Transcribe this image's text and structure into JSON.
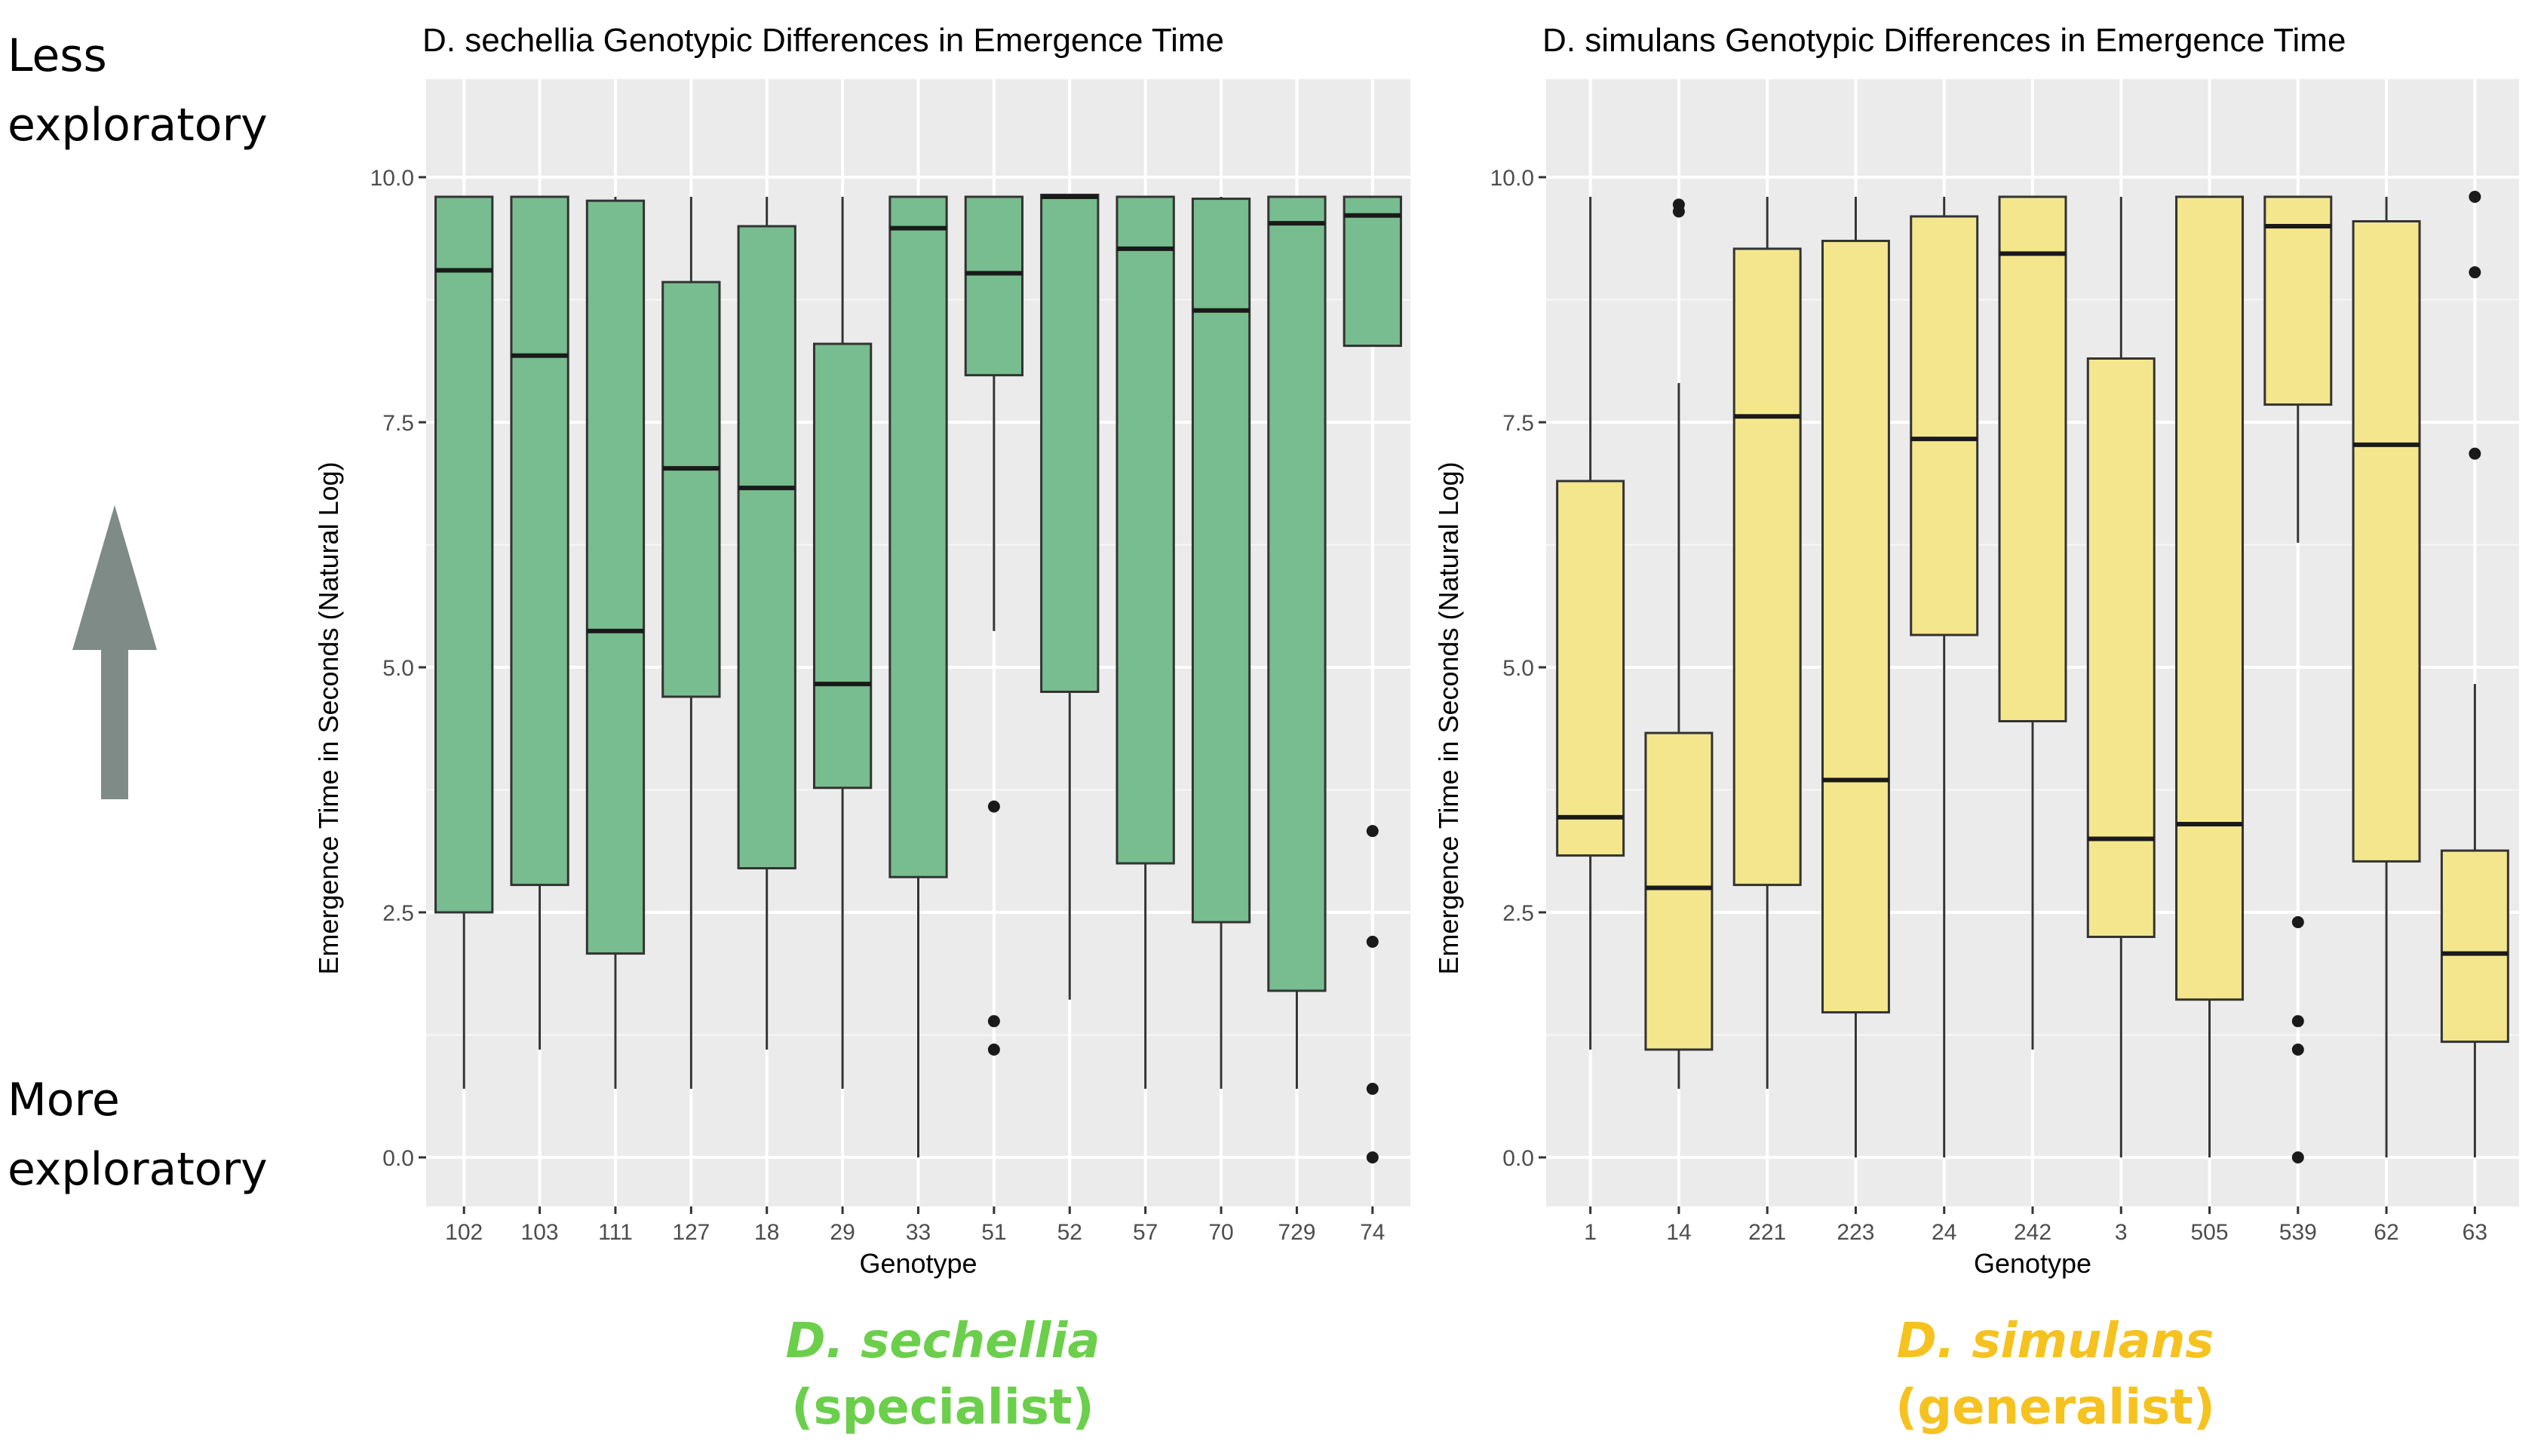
{
  "annotations": {
    "less_line1": "Less",
    "less_line2": "exploratory",
    "more_line1": "More",
    "more_line2": "exploratory",
    "arrow_icon": "up-arrow-icon",
    "arrow_color": "#7f8b86"
  },
  "species_labels": [
    {
      "name": "D. sechellia",
      "role": "(specialist)",
      "color": "#6bcf4b"
    },
    {
      "name": "D. simulans",
      "role": "(generalist)",
      "color": "#f5c21f"
    }
  ],
  "chart_data": [
    {
      "type": "boxplot",
      "title": "D. sechellia Genotypic Differences in Emergence Time",
      "xlabel": "Genotype",
      "ylabel": "Emergence Time in Seconds (Natural Log)",
      "ylim": [
        -0.5,
        11.0
      ],
      "yticks": [
        0.0,
        2.5,
        5.0,
        7.5,
        10.0
      ],
      "ytick_labels": [
        "0.0",
        "2.5",
        "5.0",
        "7.5",
        "10.0"
      ],
      "fill_color": "#77bd8f",
      "categories": [
        "102",
        "103",
        "111",
        "127",
        "18",
        "29",
        "33",
        "51",
        "52",
        "57",
        "70",
        "729",
        "74"
      ],
      "boxes": [
        {
          "genotype": "102",
          "min": 0.7,
          "q1": 2.5,
          "median": 9.05,
          "q3": 9.8,
          "max": 9.8,
          "outliers": []
        },
        {
          "genotype": "103",
          "min": 1.1,
          "q1": 2.78,
          "median": 8.18,
          "q3": 9.8,
          "max": 9.8,
          "outliers": []
        },
        {
          "genotype": "111",
          "min": 0.7,
          "q1": 2.08,
          "median": 5.37,
          "q3": 9.76,
          "max": 9.8,
          "outliers": []
        },
        {
          "genotype": "127",
          "min": 0.7,
          "q1": 4.7,
          "median": 7.03,
          "q3": 8.93,
          "max": 9.8,
          "outliers": []
        },
        {
          "genotype": "18",
          "min": 1.1,
          "q1": 2.95,
          "median": 6.83,
          "q3": 9.5,
          "max": 9.8,
          "outliers": []
        },
        {
          "genotype": "29",
          "min": 0.7,
          "q1": 3.77,
          "median": 4.83,
          "q3": 8.3,
          "max": 9.8,
          "outliers": []
        },
        {
          "genotype": "33",
          "min": 0.0,
          "q1": 2.86,
          "median": 9.48,
          "q3": 9.8,
          "max": 9.8,
          "outliers": []
        },
        {
          "genotype": "51",
          "min": 5.37,
          "q1": 7.98,
          "median": 9.02,
          "q3": 9.8,
          "max": 9.8,
          "outliers": [
            3.58,
            1.39,
            1.1
          ]
        },
        {
          "genotype": "52",
          "min": 1.61,
          "q1": 4.75,
          "median": 9.8,
          "q3": 9.82,
          "max": 9.82,
          "outliers": []
        },
        {
          "genotype": "57",
          "min": 0.7,
          "q1": 3.0,
          "median": 9.27,
          "q3": 9.8,
          "max": 9.8,
          "outliers": []
        },
        {
          "genotype": "70",
          "min": 0.7,
          "q1": 2.4,
          "median": 8.64,
          "q3": 9.78,
          "max": 9.8,
          "outliers": []
        },
        {
          "genotype": "729",
          "min": 0.7,
          "q1": 1.7,
          "median": 9.53,
          "q3": 9.8,
          "max": 9.8,
          "outliers": []
        },
        {
          "genotype": "74",
          "min": 8.28,
          "q1": 8.28,
          "median": 9.61,
          "q3": 9.8,
          "max": 9.8,
          "outliers": [
            3.33,
            2.2,
            0.7,
            0.0
          ]
        }
      ]
    },
    {
      "type": "boxplot",
      "title": "D. simulans Genotypic Differences in Emergence Time",
      "xlabel": "Genotype",
      "ylabel": "Emergence Time in Seconds (Natural Log)",
      "ylim": [
        -0.5,
        11.0
      ],
      "yticks": [
        0.0,
        2.5,
        5.0,
        7.5,
        10.0
      ],
      "ytick_labels": [
        "0.0",
        "2.5",
        "5.0",
        "7.5",
        "10.0"
      ],
      "fill_color": "#f4e68c",
      "categories": [
        "1",
        "14",
        "221",
        "223",
        "24",
        "242",
        "3",
        "505",
        "539",
        "62",
        "63"
      ],
      "boxes": [
        {
          "genotype": "1",
          "min": 1.1,
          "q1": 3.08,
          "median": 3.47,
          "q3": 6.9,
          "max": 9.8,
          "outliers": []
        },
        {
          "genotype": "14",
          "min": 0.7,
          "q1": 1.1,
          "median": 2.75,
          "q3": 4.33,
          "max": 7.9,
          "outliers": [
            9.72,
            9.65
          ]
        },
        {
          "genotype": "221",
          "min": 0.7,
          "q1": 2.78,
          "median": 7.56,
          "q3": 9.27,
          "max": 9.8,
          "outliers": []
        },
        {
          "genotype": "223",
          "min": 0.0,
          "q1": 1.48,
          "median": 3.85,
          "q3": 9.35,
          "max": 9.8,
          "outliers": []
        },
        {
          "genotype": "24",
          "min": 0.0,
          "q1": 5.33,
          "median": 7.33,
          "q3": 9.6,
          "max": 9.8,
          "outliers": []
        },
        {
          "genotype": "242",
          "min": 1.1,
          "q1": 4.45,
          "median": 9.22,
          "q3": 9.8,
          "max": 9.8,
          "outliers": []
        },
        {
          "genotype": "3",
          "min": 0.0,
          "q1": 2.25,
          "median": 3.25,
          "q3": 8.15,
          "max": 9.8,
          "outliers": []
        },
        {
          "genotype": "505",
          "min": 0.0,
          "q1": 1.61,
          "median": 3.4,
          "q3": 9.8,
          "max": 9.8,
          "outliers": []
        },
        {
          "genotype": "539",
          "min": 6.27,
          "q1": 7.68,
          "median": 9.5,
          "q3": 9.8,
          "max": 9.8,
          "outliers": [
            2.4,
            1.39,
            1.1,
            0.0
          ]
        },
        {
          "genotype": "62",
          "min": 0.0,
          "q1": 3.02,
          "median": 7.27,
          "q3": 9.55,
          "max": 9.8,
          "outliers": []
        },
        {
          "genotype": "63",
          "min": 0.0,
          "q1": 1.18,
          "median": 2.08,
          "q3": 3.13,
          "max": 4.83,
          "outliers": [
            9.8,
            9.03,
            7.18
          ]
        }
      ]
    }
  ]
}
